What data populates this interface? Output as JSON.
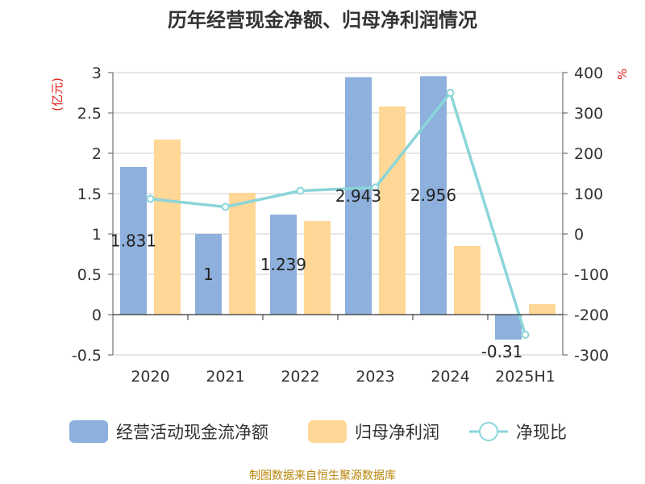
{
  "chart_data": {
    "type": "bar",
    "title": "历年经营现金净额、归母净利润情况",
    "categories": [
      "2020",
      "2021",
      "2022",
      "2023",
      "2024",
      "2025H1"
    ],
    "left_unit": "(亿元)",
    "right_unit": "%",
    "ylim_left": [
      -0.5,
      3
    ],
    "yticks_left": [
      "-0.5",
      "0",
      "0.5",
      "1",
      "1.5",
      "2",
      "2.5",
      "3"
    ],
    "ylim_right": [
      -300,
      400
    ],
    "yticks_right": [
      "-300",
      "-200",
      "-100",
      "0",
      "100",
      "200",
      "300",
      "400"
    ],
    "series": [
      {
        "name": "经营活动现金流净额",
        "axis": "left",
        "kind": "bar",
        "color": "#8eb0dc",
        "values": [
          1.831,
          1,
          1.239,
          2.943,
          2.956,
          -0.31
        ],
        "labels": [
          "1.831",
          "1",
          "1.239",
          "2.943",
          "2.956",
          "-0.31"
        ]
      },
      {
        "name": "归母净利润",
        "axis": "left",
        "kind": "bar",
        "color": "#ffd796",
        "values": [
          2.17,
          1.51,
          1.16,
          2.58,
          0.85,
          0.13
        ]
      },
      {
        "name": "净现比",
        "axis": "right",
        "kind": "line",
        "color": "#8bd5d9",
        "values": [
          87,
          67,
          107,
          115,
          350,
          -250
        ]
      }
    ],
    "grid": true,
    "legend_position": "bottom",
    "source": "制图数据来自恒生聚源数据库"
  }
}
